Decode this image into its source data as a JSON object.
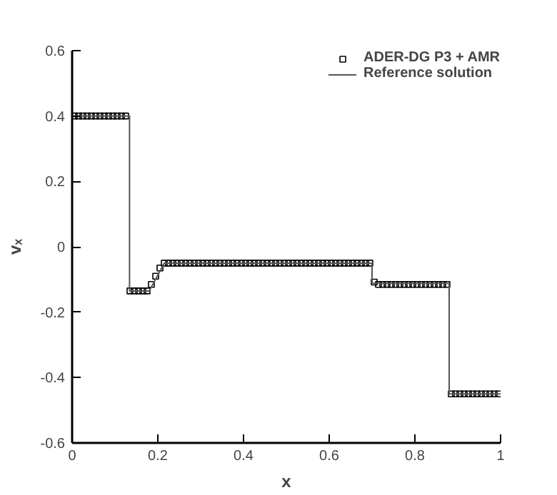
{
  "chart_data": {
    "type": "scatter",
    "xlabel": "x",
    "ylabel": "vₓ",
    "xlim": [
      0,
      1
    ],
    "ylim": [
      -0.6,
      0.6
    ],
    "xticks": [
      0,
      0.2,
      0.4,
      0.6,
      0.8,
      1
    ],
    "yticks": [
      -0.6,
      -0.4,
      -0.2,
      0,
      0.2,
      0.4,
      0.6
    ],
    "grid": false,
    "legend": "top right",
    "series": [
      {
        "name": "ADER-DG P3 + AMR",
        "marker": "square",
        "color": "#000000",
        "x": [
          0.005,
          0.015,
          0.025,
          0.035,
          0.045,
          0.055,
          0.065,
          0.075,
          0.085,
          0.095,
          0.105,
          0.115,
          0.125,
          0.135,
          0.145,
          0.155,
          0.165,
          0.175,
          0.185,
          0.195,
          0.205,
          0.215,
          0.225,
          0.235,
          0.245,
          0.255,
          0.265,
          0.275,
          0.285,
          0.295,
          0.305,
          0.315,
          0.325,
          0.335,
          0.345,
          0.355,
          0.365,
          0.375,
          0.385,
          0.395,
          0.405,
          0.415,
          0.425,
          0.435,
          0.445,
          0.455,
          0.465,
          0.475,
          0.485,
          0.495,
          0.505,
          0.515,
          0.525,
          0.535,
          0.545,
          0.555,
          0.565,
          0.575,
          0.585,
          0.595,
          0.605,
          0.615,
          0.625,
          0.635,
          0.645,
          0.655,
          0.665,
          0.675,
          0.685,
          0.695,
          0.705,
          0.715,
          0.725,
          0.735,
          0.745,
          0.755,
          0.765,
          0.775,
          0.785,
          0.795,
          0.805,
          0.815,
          0.825,
          0.835,
          0.845,
          0.855,
          0.865,
          0.875,
          0.885,
          0.895,
          0.905,
          0.915,
          0.925,
          0.935,
          0.945,
          0.955,
          0.965,
          0.975,
          0.985,
          0.995
        ],
        "values": [
          0.4,
          0.4,
          0.4,
          0.4,
          0.4,
          0.4,
          0.4,
          0.4,
          0.4,
          0.4,
          0.4,
          0.4,
          0.4,
          -0.135,
          -0.135,
          -0.135,
          -0.135,
          -0.135,
          -0.115,
          -0.09,
          -0.065,
          -0.05,
          -0.05,
          -0.05,
          -0.05,
          -0.05,
          -0.05,
          -0.05,
          -0.05,
          -0.05,
          -0.05,
          -0.05,
          -0.05,
          -0.05,
          -0.05,
          -0.05,
          -0.05,
          -0.05,
          -0.05,
          -0.05,
          -0.05,
          -0.05,
          -0.05,
          -0.05,
          -0.05,
          -0.05,
          -0.05,
          -0.05,
          -0.05,
          -0.05,
          -0.05,
          -0.05,
          -0.05,
          -0.05,
          -0.05,
          -0.05,
          -0.05,
          -0.05,
          -0.05,
          -0.05,
          -0.05,
          -0.05,
          -0.05,
          -0.05,
          -0.05,
          -0.05,
          -0.05,
          -0.05,
          -0.05,
          -0.05,
          -0.108,
          -0.115,
          -0.115,
          -0.115,
          -0.115,
          -0.115,
          -0.115,
          -0.115,
          -0.115,
          -0.115,
          -0.115,
          -0.115,
          -0.115,
          -0.115,
          -0.115,
          -0.115,
          -0.115,
          -0.115,
          -0.45,
          -0.45,
          -0.45,
          -0.45,
          -0.45,
          -0.45,
          -0.45,
          -0.45,
          -0.45,
          -0.45,
          -0.45,
          -0.45
        ]
      },
      {
        "name": "Reference solution",
        "type": "line",
        "marker": "none",
        "line_style": "solid",
        "color": "#555555",
        "x": [
          0,
          0.134,
          0.134,
          0.18,
          0.215,
          0.7,
          0.7,
          0.88,
          0.88,
          1
        ],
        "values": [
          0.4,
          0.4,
          -0.135,
          -0.135,
          -0.05,
          -0.05,
          -0.112,
          -0.112,
          -0.45,
          -0.45
        ]
      }
    ]
  }
}
